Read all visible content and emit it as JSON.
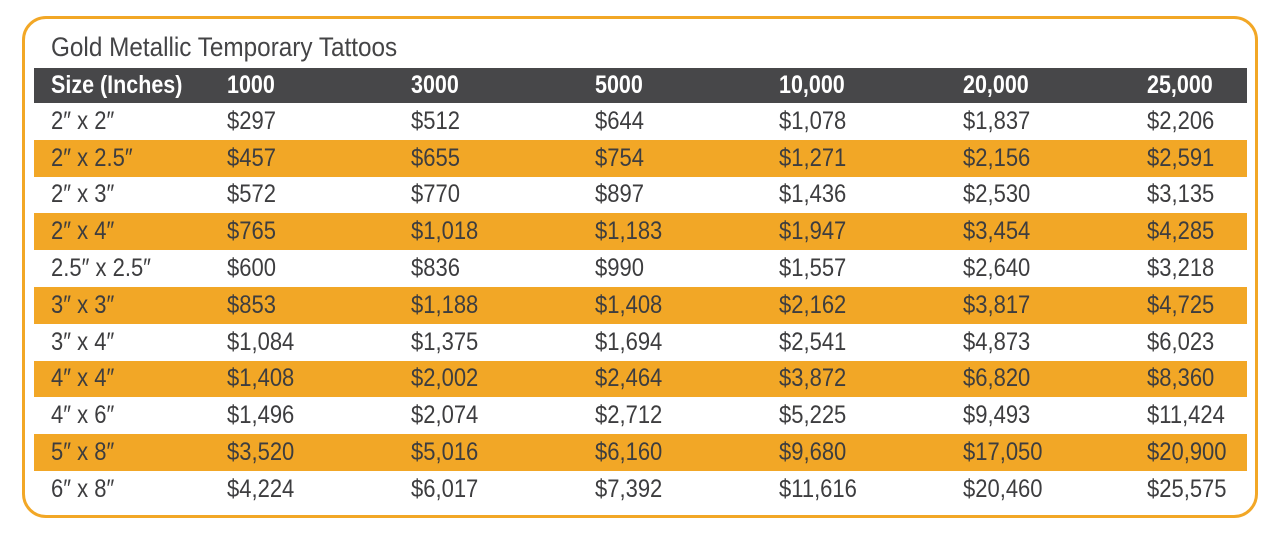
{
  "title": "Gold Metallic Temporary Tattoos",
  "accent_color": "#f2a726",
  "header_color": "#474749",
  "columns": [
    "Size (Inches)",
    "1000",
    "3000",
    "5000",
    "10,000",
    "20,000",
    "25,000"
  ],
  "rows": [
    [
      "2″ x 2″",
      "$297",
      "$512",
      "$644",
      "$1,078",
      "$1,837",
      "$2,206"
    ],
    [
      "2″ x 2.5″",
      "$457",
      "$655",
      "$754",
      "$1,271",
      "$2,156",
      "$2,591"
    ],
    [
      "2″ x 3″",
      "$572",
      "$770",
      "$897",
      "$1,436",
      "$2,530",
      "$3,135"
    ],
    [
      "2″ x 4″",
      "$765",
      "$1,018",
      "$1,183",
      "$1,947",
      "$3,454",
      "$4,285"
    ],
    [
      "2.5″ x 2.5″",
      "$600",
      "$836",
      "$990",
      "$1,557",
      "$2,640",
      "$3,218"
    ],
    [
      "3″ x 3″",
      "$853",
      "$1,188",
      "$1,408",
      "$2,162",
      "$3,817",
      "$4,725"
    ],
    [
      "3″ x 4″",
      "$1,084",
      "$1,375",
      "$1,694",
      "$2,541",
      "$4,873",
      "$6,023"
    ],
    [
      "4″ x 4″",
      "$1,408",
      "$2,002",
      "$2,464",
      "$3,872",
      "$6,820",
      "$8,360"
    ],
    [
      "4″ x 6″",
      "$1,496",
      "$2,074",
      "$2,712",
      "$5,225",
      "$9,493",
      "$11,424"
    ],
    [
      "5″ x 8″",
      "$3,520",
      "$5,016",
      "$6,160",
      "$9,680",
      "$17,050",
      "$20,900"
    ],
    [
      "6″ x 8″",
      "$4,224",
      "$6,017",
      "$7,392",
      "$11,616",
      "$20,460",
      "$25,575"
    ]
  ]
}
